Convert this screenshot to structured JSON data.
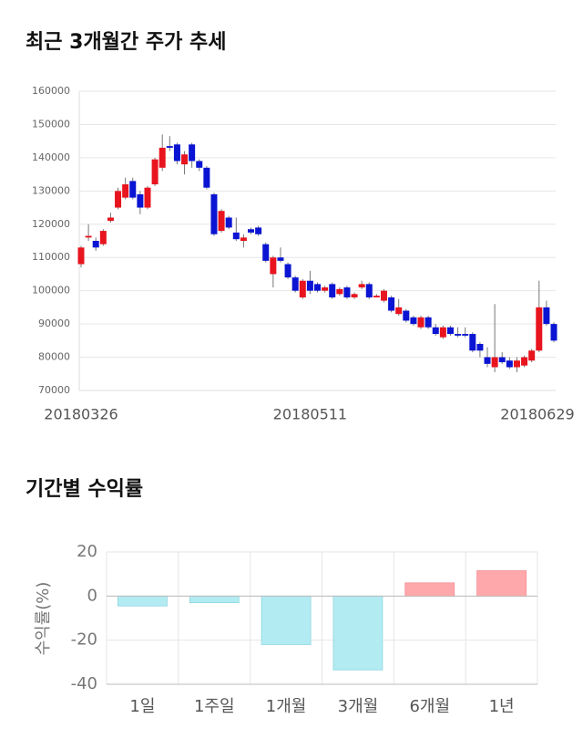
{
  "chart_data": [
    {
      "type": "candlestick",
      "title": "최근 3개월간 주가 추세",
      "categories": [
        "20180326",
        null,
        null,
        null,
        null,
        null,
        null,
        null,
        null,
        null,
        null,
        null,
        null,
        null,
        null,
        null,
        null,
        null,
        null,
        null,
        null,
        null,
        null,
        null,
        null,
        null,
        null,
        null,
        null,
        null,
        null,
        "20180511",
        null,
        null,
        null,
        null,
        null,
        null,
        null,
        null,
        null,
        null,
        null,
        null,
        null,
        null,
        null,
        null,
        null,
        null,
        null,
        null,
        null,
        null,
        null,
        null,
        null,
        null,
        null,
        null,
        null,
        null,
        null,
        null,
        "20180629"
      ],
      "open": [
        108000,
        116000,
        115000,
        114000,
        121000,
        125000,
        128000,
        133000,
        129000,
        125000,
        132000,
        137000,
        143500,
        144000,
        138000,
        144000,
        139000,
        137000,
        129000,
        118000,
        122000,
        117500,
        115000,
        118500,
        119000,
        114000,
        105000,
        110000,
        108000,
        104000,
        98000,
        103000,
        102000,
        100000,
        102000,
        99000,
        101000,
        98000,
        101000,
        102000,
        98000,
        97000,
        98000,
        93000,
        94000,
        92000,
        89000,
        92000,
        89000,
        86000,
        89000,
        87000,
        87000,
        87000,
        84000,
        80000,
        77000,
        80000,
        79000,
        77000,
        77500,
        79000,
        82000,
        95000,
        90000
      ],
      "high": [
        113500,
        120000,
        116000,
        118500,
        123500,
        131000,
        134000,
        134000,
        130000,
        131500,
        140000,
        147000,
        146500,
        144500,
        142000,
        144500,
        139500,
        137500,
        129500,
        124500,
        122500,
        122000,
        117000,
        119000,
        119500,
        114500,
        110500,
        113000,
        108500,
        104500,
        103500,
        106000,
        102500,
        101500,
        102500,
        101000,
        101500,
        99500,
        103000,
        102500,
        99000,
        100500,
        98500,
        97500,
        94500,
        92500,
        92500,
        92500,
        90000,
        89500,
        89500,
        89000,
        89000,
        87500,
        84500,
        83000,
        96000,
        81500,
        80000,
        80000,
        80500,
        82500,
        103000,
        97000,
        90500
      ],
      "low": [
        107000,
        115000,
        112000,
        113500,
        120500,
        124500,
        127500,
        127500,
        123000,
        124500,
        131500,
        136000,
        142000,
        138000,
        135000,
        137000,
        136000,
        130500,
        116500,
        117500,
        118500,
        115000,
        113000,
        117000,
        116500,
        108500,
        101000,
        108500,
        103500,
        99500,
        97500,
        99000,
        99500,
        99500,
        97500,
        98500,
        97500,
        97500,
        100500,
        97500,
        98000,
        96500,
        93500,
        92500,
        90500,
        89500,
        88500,
        88500,
        86500,
        85500,
        86500,
        86000,
        86000,
        81500,
        80000,
        77000,
        75500,
        78000,
        76500,
        75500,
        77000,
        78500,
        81500,
        89500,
        84500
      ],
      "close": [
        113000,
        116500,
        113000,
        118000,
        122000,
        130000,
        132000,
        128000,
        125000,
        131000,
        139500,
        143000,
        143000,
        139000,
        141000,
        139000,
        137000,
        131000,
        117000,
        124000,
        119000,
        115500,
        116000,
        117500,
        117000,
        109000,
        110000,
        109000,
        104000,
        100000,
        103000,
        100000,
        100000,
        101000,
        98000,
        100500,
        98000,
        99000,
        102000,
        98000,
        98500,
        100000,
        94000,
        95000,
        91000,
        90000,
        92000,
        89000,
        87000,
        89000,
        87000,
        86500,
        86500,
        82000,
        82000,
        78000,
        80000,
        78500,
        77000,
        79000,
        80000,
        82000,
        95000,
        90000,
        85000
      ],
      "up_color": "#e8141e",
      "down_color": "#0a14d2",
      "ylim": [
        70000,
        160000
      ],
      "yticks": [
        70000,
        80000,
        90000,
        100000,
        110000,
        120000,
        130000,
        140000,
        150000,
        160000
      ],
      "grid": true
    },
    {
      "type": "bar",
      "title": "기간별 수익률",
      "ylabel": "수익률(%)",
      "categories": [
        "1일",
        "1주일",
        "1개월",
        "3개월",
        "6개월",
        "1년"
      ],
      "values": [
        -4.5,
        -3,
        -22,
        -33.5,
        6,
        11.5
      ],
      "positive_color": "#ffa8ab",
      "negative_color": "#b2ebf2",
      "ylim": [
        -40,
        20
      ],
      "yticks": [
        -40,
        -20,
        0,
        20
      ],
      "grid": true
    }
  ]
}
